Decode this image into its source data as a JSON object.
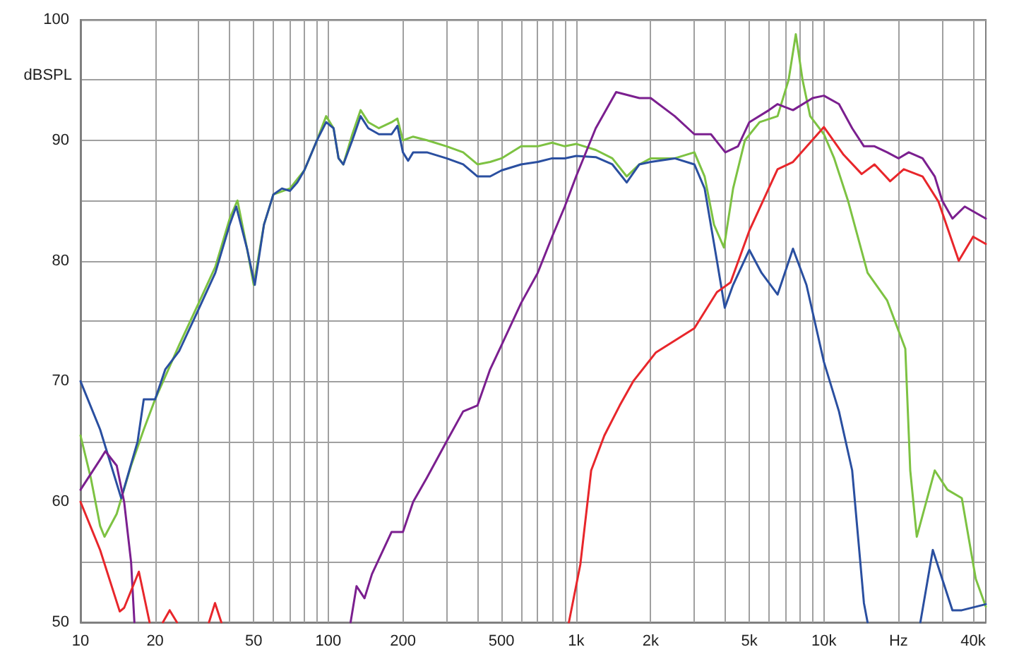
{
  "chart_data": {
    "type": "line",
    "ylabel": "dBSPL",
    "log": "x",
    "grid": true,
    "marker": "none",
    "line_style": "solid",
    "xlim": [
      10,
      45000
    ],
    "ylim": [
      50,
      100
    ],
    "xticks": [
      10,
      20,
      {
        "value": 30,
        "label": null
      },
      {
        "value": 40,
        "label": null
      },
      50,
      {
        "value": 60,
        "label": null
      },
      {
        "value": 70,
        "label": null
      },
      {
        "value": 80,
        "label": null
      },
      {
        "value": 90,
        "label": null
      },
      100,
      200,
      {
        "value": 300,
        "label": null
      },
      {
        "value": 400,
        "label": null
      },
      500,
      {
        "value": 600,
        "label": null
      },
      {
        "value": 700,
        "label": null
      },
      {
        "value": 800,
        "label": null
      },
      {
        "value": 900,
        "label": null
      },
      {
        "value": 1000,
        "label": "1k"
      },
      {
        "value": 2000,
        "label": "2k"
      },
      {
        "value": 3000,
        "label": null
      },
      {
        "value": 4000,
        "label": null
      },
      {
        "value": 5000,
        "label": "5k"
      },
      {
        "value": 6000,
        "label": null
      },
      {
        "value": 7000,
        "label": null
      },
      {
        "value": 8000,
        "label": null
      },
      {
        "value": 9000,
        "label": null
      },
      {
        "value": 10000,
        "label": "10k"
      },
      {
        "value": 20000,
        "label": "Hz"
      },
      {
        "value": 30000,
        "label": null
      },
      {
        "value": 40000,
        "label": "40k"
      }
    ],
    "yticks": [
      50,
      {
        "value": 55,
        "label": null
      },
      60,
      {
        "value": 65,
        "label": null
      },
      70,
      {
        "value": 75,
        "label": null
      },
      80,
      {
        "value": 85,
        "label": null
      },
      90,
      {
        "value": 95,
        "label": null
      },
      100
    ],
    "series": [
      {
        "color": "#7dc242",
        "x": [
          10,
          11,
          12,
          12.5,
          14,
          16,
          18,
          20,
          25,
          30,
          35,
          40,
          43,
          47,
          50,
          55,
          60,
          70,
          80,
          90,
          98,
          105,
          110,
          115,
          125,
          135,
          145,
          160,
          180,
          190,
          200,
          220,
          250,
          300,
          350,
          400,
          450,
          500,
          600,
          700,
          800,
          900,
          1000,
          1200,
          1400,
          1600,
          1800,
          2000,
          2500,
          3000,
          3300,
          3600,
          3950,
          4300,
          4800,
          5500,
          6500,
          7200,
          7700,
          8200,
          8800,
          10000,
          11000,
          12500,
          15000,
          18000,
          21300,
          22300,
          23700,
          28000,
          31500,
          36000,
          41000,
          45000
        ],
        "values": [
          65.5,
          62,
          58,
          57.1,
          59,
          63,
          66,
          68.5,
          73,
          76.5,
          79.5,
          83.5,
          85,
          81,
          78,
          83,
          85.5,
          86,
          87.5,
          90,
          92,
          91,
          88.5,
          88,
          90.5,
          92.5,
          91.5,
          91,
          91.5,
          91.8,
          90,
          90.3,
          90,
          89.5,
          89,
          88,
          88.2,
          88.5,
          89.5,
          89.5,
          89.8,
          89.5,
          89.7,
          89.2,
          88.5,
          87,
          88,
          88.5,
          88.5,
          89,
          87,
          83,
          81.1,
          86,
          90,
          91.5,
          92,
          95,
          98.8,
          95,
          92,
          90.5,
          88.5,
          85,
          79,
          76.7,
          72.7,
          62.6,
          57.1,
          62.6,
          61,
          60.3,
          53.6,
          51.3
        ]
      },
      {
        "color": "#2a4fa0",
        "x": [
          10,
          12,
          14.6,
          17,
          18,
          20,
          22,
          25,
          30,
          35,
          40,
          42.5,
          47,
          50.5,
          55,
          60,
          65,
          70,
          75,
          80,
          90,
          98,
          105,
          110,
          115,
          125,
          135,
          145,
          160,
          180,
          190,
          200,
          210,
          220,
          250,
          300,
          350,
          400,
          450,
          500,
          600,
          700,
          800,
          900,
          1000,
          1200,
          1400,
          1600,
          1800,
          2000,
          2500,
          3000,
          3300,
          3700,
          3980,
          4300,
          5000,
          5600,
          6500,
          7500,
          8500,
          10000,
          11500,
          13000,
          14500,
          15000,
          19000,
          24500,
          27500,
          33000,
          36000,
          45000
        ],
        "values": [
          70,
          66,
          60.3,
          65,
          68.5,
          68.5,
          71,
          72.5,
          76,
          79,
          83,
          84.5,
          81,
          78,
          83,
          85.5,
          86,
          85.8,
          86.5,
          87.5,
          90,
          91.5,
          91,
          88.5,
          88,
          90,
          92,
          91,
          90.5,
          90.5,
          91.2,
          89,
          88.3,
          89,
          89,
          88.5,
          88,
          87,
          87,
          87.5,
          88,
          88.2,
          88.5,
          88.5,
          88.7,
          88.6,
          88,
          86.5,
          88,
          88.2,
          88.5,
          88,
          86,
          80,
          76.1,
          78,
          80.9,
          79,
          77.2,
          81,
          78,
          71.6,
          67.5,
          62.6,
          51.6,
          50,
          null,
          50,
          56,
          51,
          51,
          51.5
        ]
      },
      {
        "color": "#7b1f8f",
        "x": [
          10,
          12,
          12.6,
          14,
          15,
          16,
          16.5,
          60,
          123,
          130,
          140,
          150,
          180,
          200,
          220,
          250,
          300,
          350,
          400,
          450,
          500,
          600,
          700,
          800,
          900,
          1000,
          1200,
          1450,
          1800,
          2000,
          2500,
          3000,
          3500,
          4000,
          4500,
          5000,
          6000,
          6500,
          7500,
          9000,
          10000,
          11500,
          13000,
          14500,
          16000,
          18000,
          20000,
          22000,
          25000,
          28000,
          30000,
          33000,
          37000,
          45000
        ],
        "values": [
          61,
          63.5,
          64.2,
          63,
          60,
          55,
          50,
          null,
          50,
          53,
          52,
          54,
          57.5,
          57.5,
          60,
          62,
          65,
          67.5,
          68,
          71,
          73,
          76.5,
          79,
          82,
          84.5,
          87,
          91,
          94,
          93.5,
          93.5,
          92,
          90.5,
          90.5,
          89,
          89.5,
          91.5,
          92.5,
          93,
          92.5,
          93.5,
          93.7,
          93,
          91,
          89.5,
          89.5,
          89,
          88.5,
          89,
          88.5,
          87,
          85,
          83.5,
          84.5,
          83.5
        ]
      },
      {
        "color": "#e8262b",
        "x": [
          10,
          12,
          14.4,
          15,
          17.2,
          19,
          20,
          21.5,
          22.9,
          24.5,
          27,
          33,
          34.9,
          37,
          60,
          935,
          1040,
          1150,
          1300,
          1500,
          1700,
          2100,
          3000,
          3700,
          4200,
          5000,
          6500,
          7500,
          10000,
          12000,
          14200,
          16000,
          18500,
          21000,
          25000,
          29000,
          35000,
          40000,
          45000
        ],
        "values": [
          60,
          56,
          50.9,
          51.2,
          54.2,
          50,
          null,
          50,
          51,
          50,
          null,
          50,
          51.6,
          50,
          null,
          50,
          54.8,
          62.6,
          65.5,
          68,
          70,
          72.4,
          74.4,
          77.4,
          78.2,
          82.5,
          87.6,
          88.2,
          91.1,
          88.8,
          87.2,
          88,
          86.6,
          87.6,
          87,
          84.9,
          80,
          82,
          81.4
        ]
      }
    ]
  }
}
